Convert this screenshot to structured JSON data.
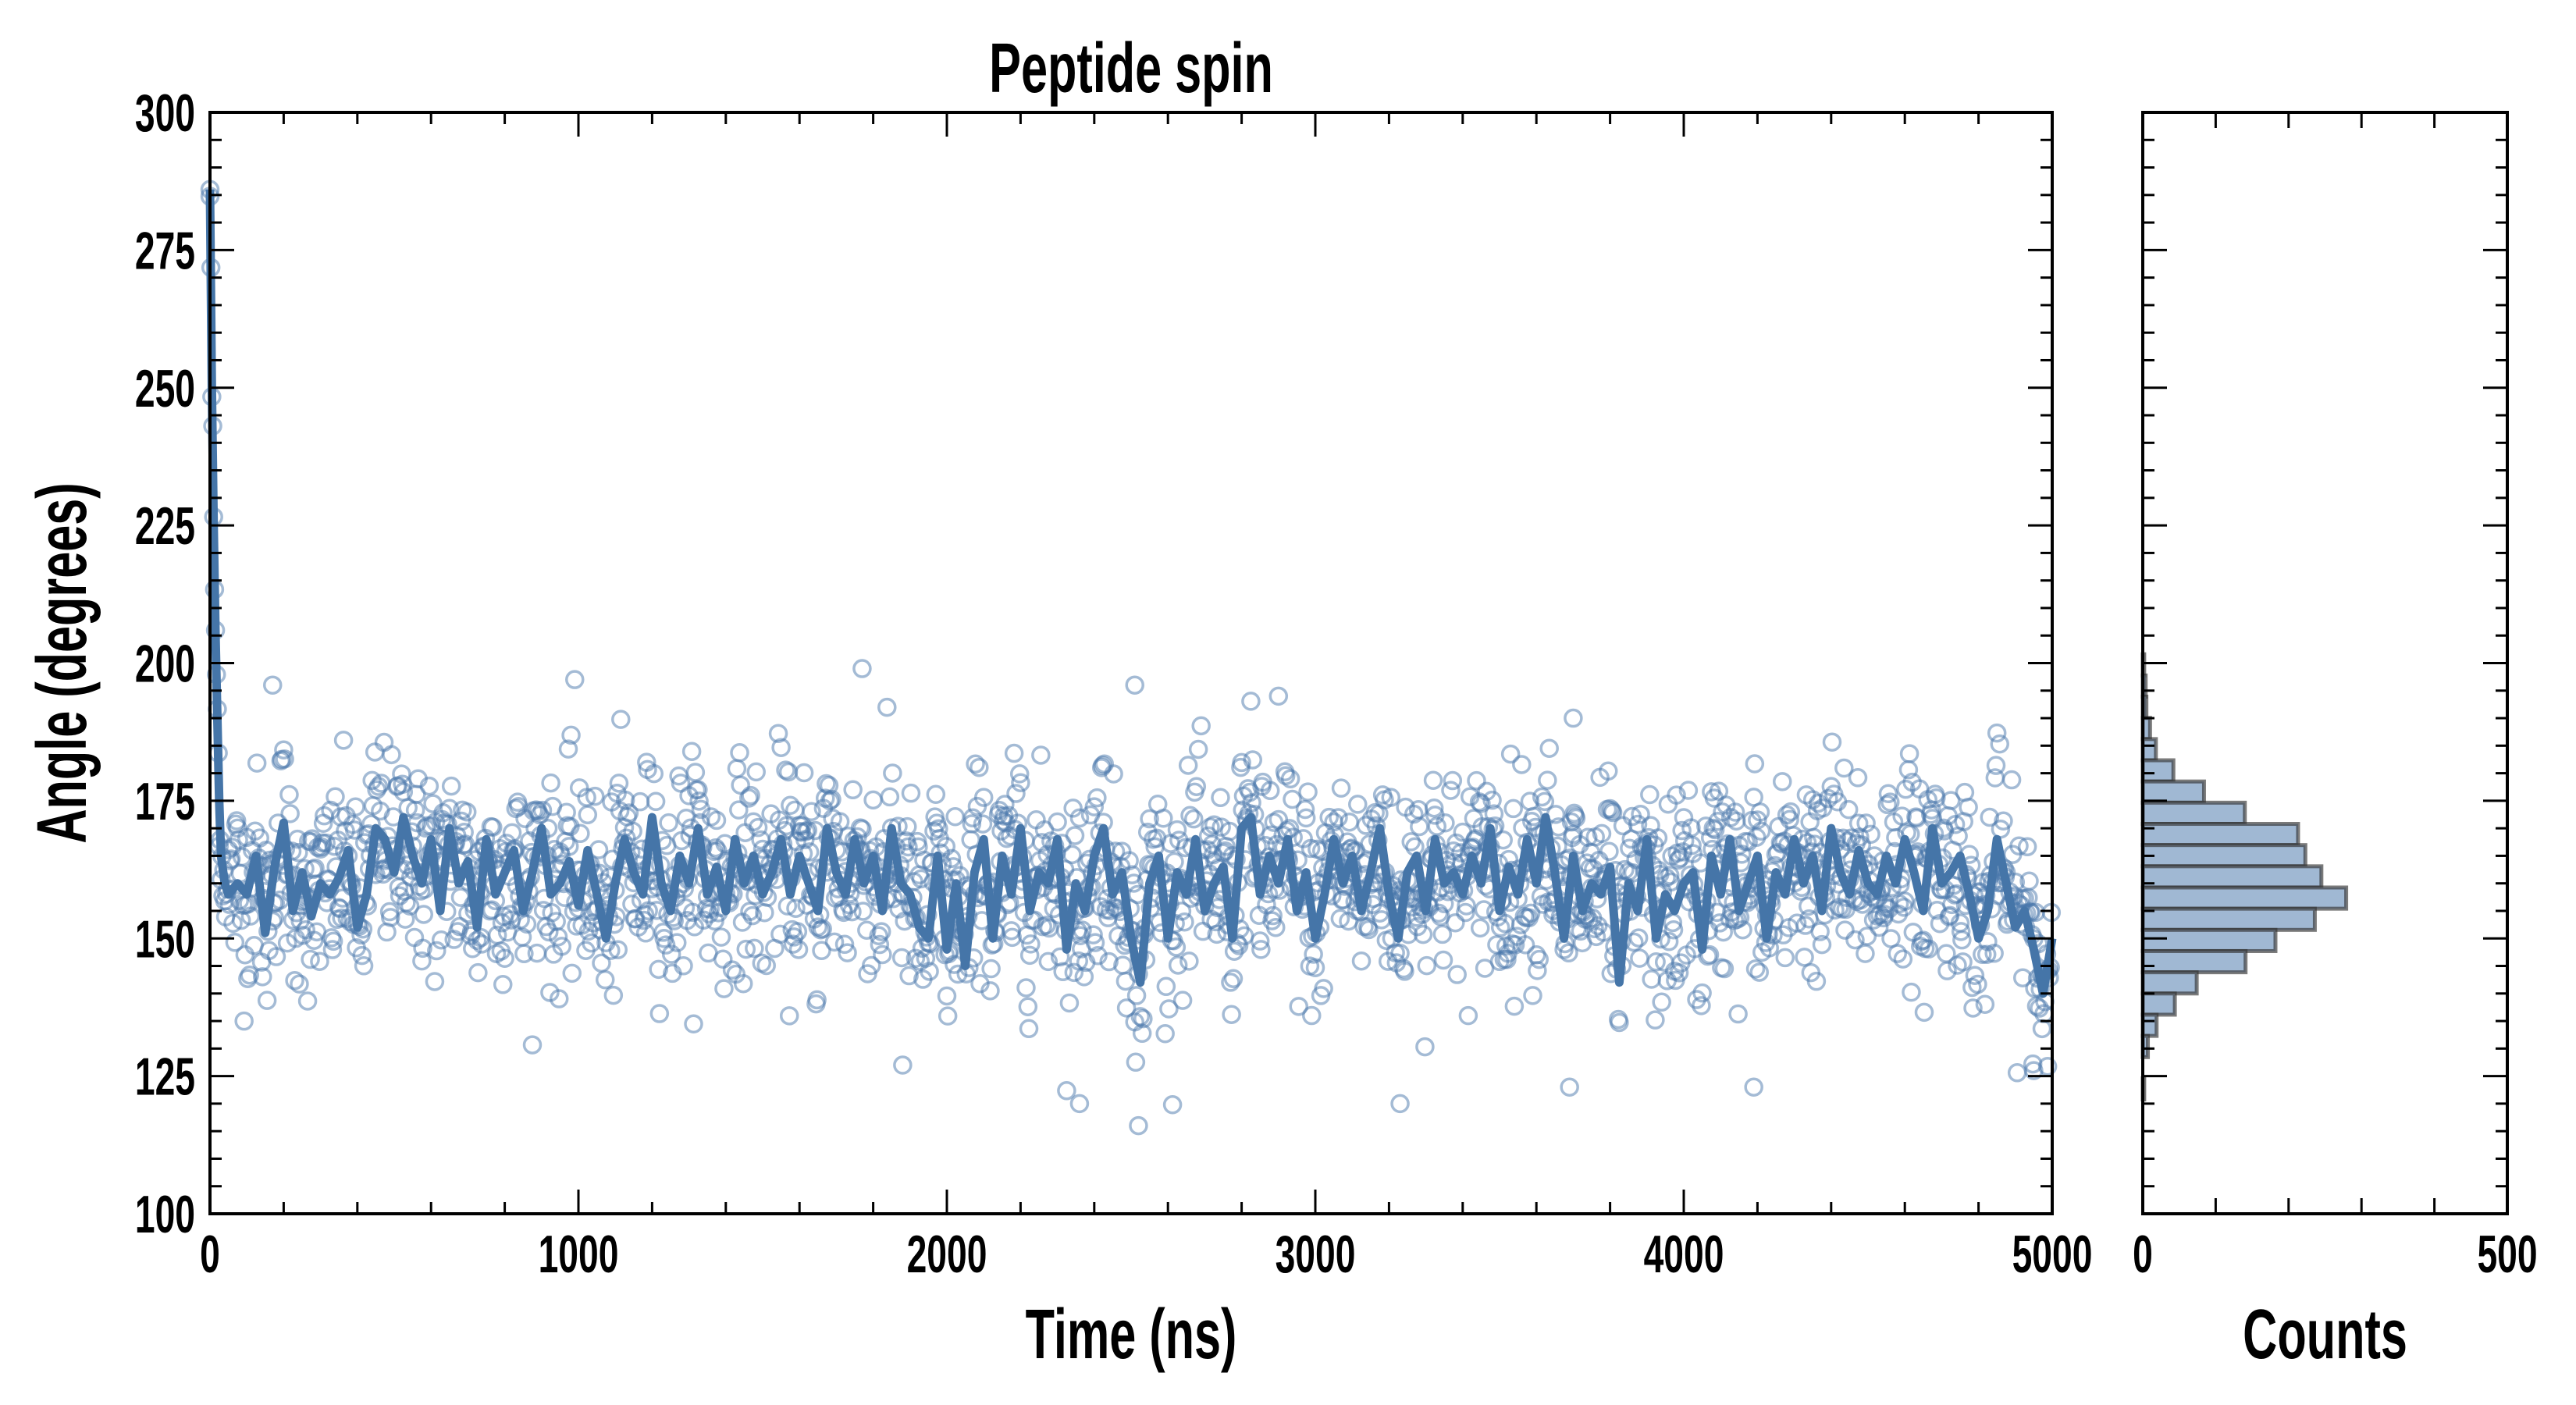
{
  "chart_data": [
    {
      "type": "scatter+line",
      "title": "Peptide spin",
      "xlabel": "Time (ns)",
      "ylabel": "Angle (degrees)",
      "xlim": [
        0,
        5000
      ],
      "ylim": [
        100,
        300
      ],
      "xticks": [
        0,
        1000,
        2000,
        3000,
        4000,
        5000
      ],
      "yticks": [
        100,
        125,
        150,
        175,
        200,
        225,
        250,
        275,
        300
      ],
      "x_minor_step": 200,
      "y_minor_step": 5,
      "grid": false,
      "colors": {
        "line": "#4575a8",
        "marker": "#4a78ab"
      },
      "initial_decay": {
        "x": [
          0,
          5,
          10,
          15,
          20,
          25,
          30,
          40
        ],
        "y": [
          286,
          250,
          225,
          205,
          190,
          175,
          165,
          160
        ]
      },
      "running_average": {
        "x_start": 50,
        "x_end": 5000,
        "values": [
          158,
          160,
          158,
          165,
          151,
          163,
          171,
          155,
          162,
          154,
          160,
          158,
          161,
          166,
          152,
          158,
          170,
          168,
          162,
          172,
          165,
          160,
          168,
          155,
          170,
          160,
          164,
          152,
          168,
          158,
          162,
          166,
          155,
          162,
          170,
          158,
          160,
          164,
          156,
          166,
          158,
          150,
          160,
          168,
          162,
          158,
          172,
          160,
          155,
          165,
          160,
          170,
          158,
          163,
          155,
          168,
          160,
          165,
          158,
          162,
          168,
          158,
          165,
          160,
          155,
          170,
          162,
          158,
          168,
          160,
          165,
          155,
          170,
          160,
          158,
          152,
          150,
          165,
          148,
          160,
          145,
          162,
          168,
          150,
          165,
          158,
          170,
          155,
          162,
          160,
          168,
          148,
          160,
          155,
          165,
          170,
          158,
          162,
          150,
          142,
          160,
          165,
          150,
          162,
          158,
          168,
          155,
          160,
          163,
          150,
          170,
          172,
          158,
          165,
          160,
          168,
          155,
          162,
          150,
          158,
          168,
          160,
          165,
          155,
          162,
          170,
          158,
          150,
          162,
          165,
          155,
          168,
          160,
          162,
          158,
          165,
          160,
          170,
          155,
          163,
          158,
          168,
          160,
          172,
          162,
          150,
          165,
          155,
          160,
          158,
          163,
          142,
          160,
          155,
          168,
          150,
          158,
          155,
          160,
          162,
          148,
          165,
          158,
          168,
          155,
          160,
          165,
          150,
          162,
          158,
          168,
          160,
          165,
          155,
          170,
          162,
          158,
          166,
          160,
          158,
          165,
          160,
          168,
          162,
          155,
          170,
          160,
          162,
          165,
          158,
          150,
          155,
          168,
          160,
          152,
          155,
          148,
          140,
          150
        ]
      },
      "scatter": {
        "n": 2000,
        "noise_sd": 9,
        "outliers": {
          "x": [
            0,
            170,
            990,
            1770,
            2360,
            2520,
            2510,
            2900,
            3230,
            3690,
            3700,
            4190,
            1880,
            4950
          ],
          "y": [
            286,
            196,
            197,
            199,
            120,
            116,
            196,
            194,
            120,
            123,
            190,
            123,
            127,
            126
          ]
        }
      }
    },
    {
      "type": "bar",
      "orientation": "horizontal",
      "xlabel": "Counts",
      "xlim": [
        0,
        500
      ],
      "xticks": [
        0,
        500
      ],
      "x_minor_step": 100,
      "ylim": [
        100,
        300
      ],
      "bin_top": 201.6,
      "bin_width": 3.85,
      "counts": [
        2,
        4,
        5,
        10,
        18,
        42,
        84,
        140,
        213,
        223,
        245,
        279,
        236,
        182,
        141,
        74,
        44,
        19,
        7,
        0,
        2
      ],
      "colors": {
        "fill": "#a0b8d3",
        "edge": "#333333"
      }
    }
  ]
}
